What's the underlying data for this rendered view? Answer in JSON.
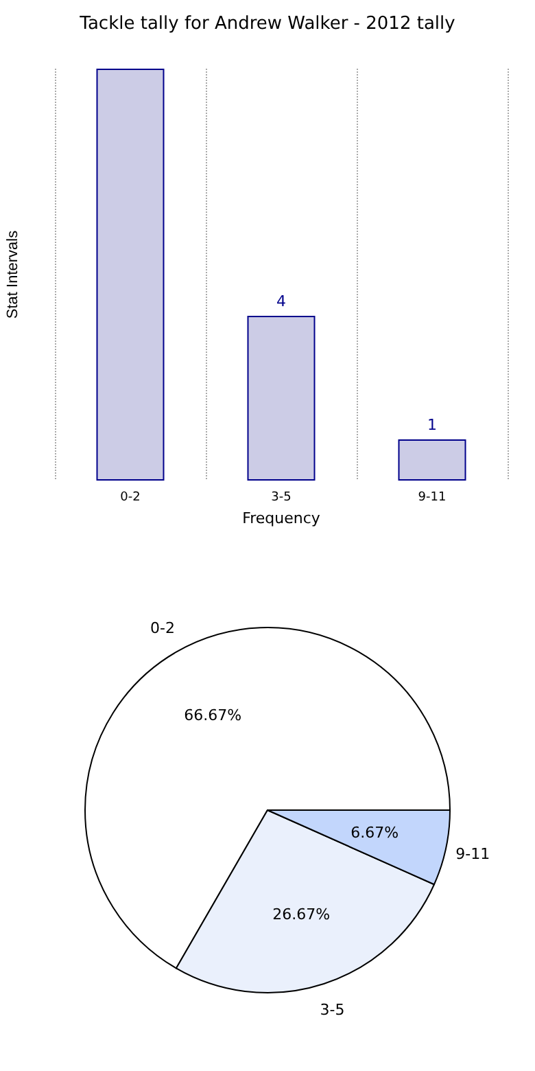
{
  "chart_data": [
    {
      "type": "bar",
      "title": "Tackle tally for Andrew Walker - 2012 tally",
      "xlabel": "Frequency",
      "ylabel": "Stat Intervals",
      "categories": [
        "0-2",
        "3-5",
        "9-11"
      ],
      "values": [
        10,
        4,
        1
      ],
      "value_labels": [
        null,
        "4",
        "1"
      ],
      "color": "#cccce6",
      "grid": "x"
    },
    {
      "type": "pie",
      "categories": [
        "0-2",
        "3-5",
        "9-11"
      ],
      "values": [
        66.67,
        26.67,
        6.67
      ],
      "value_labels": [
        "66.67%",
        "26.67%",
        "6.67%"
      ],
      "colors": [
        "#ffffff",
        "#eaf0fc",
        "#c2d6fc"
      ]
    }
  ]
}
